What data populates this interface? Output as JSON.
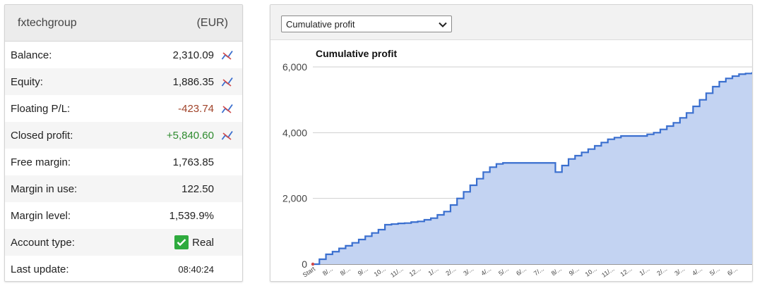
{
  "account": {
    "name": "fxtechgroup",
    "currency": "(EUR)",
    "rows": [
      {
        "label": "Balance:",
        "value": "2,310.09",
        "style": "",
        "chart_icon": true
      },
      {
        "label": "Equity:",
        "value": "1,886.35",
        "style": "",
        "chart_icon": true
      },
      {
        "label": "Floating P/L:",
        "value": "-423.74",
        "style": "neg",
        "chart_icon": true
      },
      {
        "label": "Closed profit:",
        "value": "+5,840.60",
        "style": "pos",
        "chart_icon": true
      },
      {
        "label": "Free margin:",
        "value": "1,763.85",
        "style": "",
        "chart_icon": false
      },
      {
        "label": "Margin in use:",
        "value": "122.50",
        "style": "",
        "chart_icon": false
      },
      {
        "label": "Margin level:",
        "value": "1,539.9%",
        "style": "",
        "chart_icon": false
      },
      {
        "label": "Account type:",
        "value": "Real",
        "style": "real",
        "chart_icon": false
      },
      {
        "label": "Last update:",
        "value": "08:40:24",
        "style": "small",
        "chart_icon": false
      }
    ],
    "colors": {
      "negative": "#a0432a",
      "positive": "#2e8b2e",
      "check": "#2eab3e"
    }
  },
  "chart_panel": {
    "selected_option": "Cumulative profit",
    "dropdown_icon": "chevron-down-icon"
  },
  "chart_data": {
    "type": "area",
    "title": "Cumulative profit",
    "xlabel": "",
    "ylabel": "",
    "ylim": [
      0,
      6000
    ],
    "yticks": [
      0,
      2000,
      4000,
      6000
    ],
    "ytick_labels": [
      "0",
      "2,000",
      "4,000",
      "6,000"
    ],
    "xtick_labels": [
      "Start",
      "8/...",
      "8/...",
      "9/...",
      "10...",
      "11/...",
      "12...",
      "1/...",
      "2/...",
      "3/...",
      "4/...",
      "5/...",
      "6/...",
      "7/...",
      "8/...",
      "9/...",
      "10...",
      "11/...",
      "12...",
      "1/...",
      "2/...",
      "3/...",
      "4/...",
      "5/...",
      "6/..."
    ],
    "grid": true,
    "colors": {
      "line": "#3a6fcf",
      "fill": "#c3d3f2"
    },
    "series": [
      {
        "values": [
          0,
          150,
          300,
          380,
          480,
          560,
          650,
          750,
          850,
          950,
          1050,
          1200,
          1220,
          1240,
          1250,
          1280,
          1300,
          1350,
          1400,
          1500,
          1600,
          1800,
          2000,
          2200,
          2400,
          2600,
          2800,
          2950,
          3050,
          3080,
          3080,
          3080,
          3080,
          3080,
          3080,
          3080,
          3080,
          2800,
          3000,
          3200,
          3300,
          3400,
          3500,
          3600,
          3700,
          3800,
          3850,
          3900,
          3900,
          3900,
          3900,
          3950,
          4000,
          4100,
          4200,
          4300,
          4450,
          4600,
          4800,
          5000,
          5200,
          5400,
          5550,
          5650,
          5720,
          5780,
          5800,
          5840
        ]
      }
    ]
  }
}
